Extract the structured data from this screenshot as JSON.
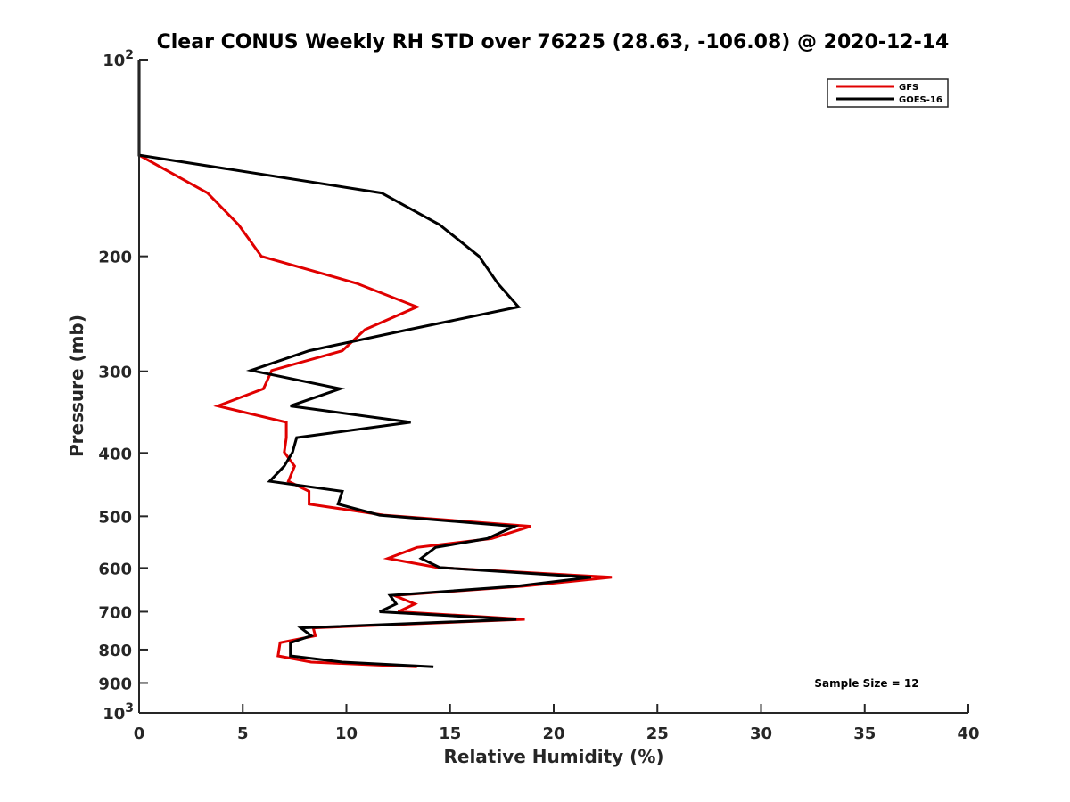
{
  "chart_data": {
    "type": "line",
    "title": "Clear CONUS Weekly RH STD over 76225 (28.63, -106.08) @ 2020-12-14",
    "xlabel": "Relative Humidity (%)",
    "ylabel": "Pressure (mb)",
    "xlim": [
      0,
      40
    ],
    "ylim": [
      100,
      1000
    ],
    "yscale": "log",
    "yreversed": true,
    "xticks": [
      "0",
      "5",
      "10",
      "15",
      "20",
      "25",
      "30",
      "35",
      "40"
    ],
    "xtick_values": [
      0,
      5,
      10,
      15,
      20,
      25,
      30,
      35,
      40
    ],
    "yticks": [
      {
        "value": 100,
        "base": "10",
        "exp": "2"
      },
      {
        "value": 200,
        "label": "200"
      },
      {
        "value": 300,
        "label": "300"
      },
      {
        "value": 400,
        "label": "400"
      },
      {
        "value": 500,
        "label": "500"
      },
      {
        "value": 600,
        "label": "600"
      },
      {
        "value": 700,
        "label": "700"
      },
      {
        "value": 800,
        "label": "800"
      },
      {
        "value": 900,
        "label": "900"
      },
      {
        "value": 1000,
        "base": "10",
        "exp": "3"
      }
    ],
    "legend_position": "top-right",
    "grid": false,
    "annotation": "Sample Size = 12",
    "pressure": [
      100,
      140,
      160,
      179,
      200,
      220,
      239,
      259,
      279,
      299,
      319,
      339,
      359,
      379,
      399,
      419,
      442,
      458,
      479,
      498,
      518,
      541,
      558,
      580,
      599,
      620,
      640,
      661,
      681,
      700,
      719,
      741,
      762,
      781,
      818,
      836,
      850
    ],
    "series": [
      {
        "name": "GFS",
        "color": "#e00000",
        "values": [
          0,
          0,
          3.3,
          4.8,
          5.9,
          10.5,
          13.4,
          10.9,
          9.8,
          6.4,
          6.0,
          3.8,
          7.1,
          7.1,
          7.0,
          7.5,
          7.2,
          8.2,
          8.2,
          11.8,
          18.9,
          17.0,
          13.4,
          12.0,
          14.4,
          22.8,
          18.5,
          12.3,
          13.3,
          12.5,
          18.6,
          8.4,
          8.5,
          6.8,
          6.7,
          8.3,
          13.4
        ]
      },
      {
        "name": "GOES-16",
        "color": "#000000",
        "values": [
          0,
          0,
          11.7,
          14.5,
          16.4,
          17.3,
          18.3,
          13.0,
          8.2,
          5.4,
          9.7,
          7.3,
          13.1,
          7.6,
          7.4,
          7.0,
          6.3,
          9.8,
          9.6,
          11.6,
          18.1,
          16.8,
          14.3,
          13.6,
          14.5,
          21.8,
          18.2,
          12.1,
          12.4,
          11.6,
          18.2,
          7.8,
          8.3,
          7.3,
          7.3,
          9.8,
          14.2
        ]
      }
    ]
  }
}
